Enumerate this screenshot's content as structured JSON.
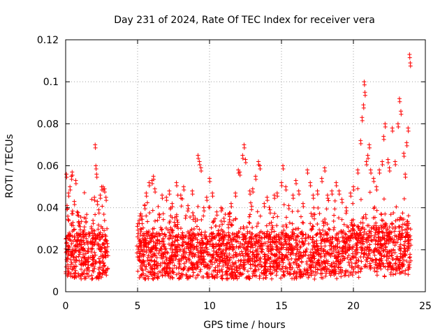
{
  "chart_data": {
    "type": "scatter",
    "title": "Day 231 of 2024, Rate Of TEC Index for receiver vera",
    "xlabel": "GPS time / hours",
    "ylabel": "ROTI / TECUs",
    "xlim": [
      0,
      25
    ],
    "ylim": [
      0,
      0.12
    ],
    "xticks": [
      0,
      5,
      10,
      15,
      20,
      25
    ],
    "xtick_labels": [
      "0",
      "5",
      "10",
      "15",
      "20",
      "25"
    ],
    "yticks": [
      0,
      0.02,
      0.04,
      0.06,
      0.08,
      0.1,
      0.12
    ],
    "ytick_labels": [
      "0",
      "0.02",
      "0.04",
      "0.06",
      "0.08",
      "0.1",
      "0.12"
    ],
    "grid": true,
    "marker": "+",
    "color": "#ff0000",
    "series": [
      {
        "name": "ROTI",
        "coverage_hours": [
          [
            0.0,
            2.95
          ],
          [
            4.95,
            24.0
          ]
        ],
        "points": [
          [
            0.05,
            0.056
          ],
          [
            0.1,
            0.041
          ],
          [
            0.15,
            0.036
          ],
          [
            0.2,
            0.047
          ],
          [
            0.25,
            0.028
          ],
          [
            0.3,
            0.05
          ],
          [
            0.4,
            0.055
          ],
          [
            0.45,
            0.057
          ],
          [
            0.5,
            0.033
          ],
          [
            0.6,
            0.043
          ],
          [
            0.7,
            0.053
          ],
          [
            0.8,
            0.038
          ],
          [
            0.9,
            0.033
          ],
          [
            1.0,
            0.031
          ],
          [
            1.1,
            0.024
          ],
          [
            1.2,
            0.026
          ],
          [
            1.4,
            0.035
          ],
          [
            1.6,
            0.028
          ],
          [
            1.8,
            0.03
          ],
          [
            1.9,
            0.034
          ],
          [
            2.0,
            0.045
          ],
          [
            2.05,
            0.07
          ],
          [
            2.1,
            0.06
          ],
          [
            2.15,
            0.056
          ],
          [
            2.2,
            0.043
          ],
          [
            2.3,
            0.039
          ],
          [
            2.4,
            0.046
          ],
          [
            2.5,
            0.05
          ],
          [
            2.6,
            0.05
          ],
          [
            2.7,
            0.049
          ],
          [
            2.8,
            0.045
          ],
          [
            5.1,
            0.034
          ],
          [
            5.2,
            0.03
          ],
          [
            5.3,
            0.036
          ],
          [
            5.5,
            0.041
          ],
          [
            5.6,
            0.047
          ],
          [
            5.8,
            0.052
          ],
          [
            6.0,
            0.053
          ],
          [
            6.1,
            0.055
          ],
          [
            6.2,
            0.049
          ],
          [
            6.5,
            0.037
          ],
          [
            6.7,
            0.046
          ],
          [
            7.0,
            0.045
          ],
          [
            7.2,
            0.048
          ],
          [
            7.4,
            0.042
          ],
          [
            7.7,
            0.052
          ],
          [
            8.0,
            0.046
          ],
          [
            8.2,
            0.05
          ],
          [
            8.5,
            0.041
          ],
          [
            8.8,
            0.048
          ],
          [
            9.0,
            0.035
          ],
          [
            9.2,
            0.065
          ],
          [
            9.3,
            0.062
          ],
          [
            9.4,
            0.059
          ],
          [
            9.6,
            0.04
          ],
          [
            9.8,
            0.045
          ],
          [
            10.0,
            0.054
          ],
          [
            10.2,
            0.047
          ],
          [
            10.5,
            0.038
          ],
          [
            10.8,
            0.04
          ],
          [
            11.0,
            0.035
          ],
          [
            11.3,
            0.032
          ],
          [
            11.5,
            0.042
          ],
          [
            11.8,
            0.047
          ],
          [
            12.0,
            0.058
          ],
          [
            12.1,
            0.057
          ],
          [
            12.3,
            0.065
          ],
          [
            12.4,
            0.07
          ],
          [
            12.5,
            0.063
          ],
          [
            12.8,
            0.048
          ],
          [
            13.0,
            0.049
          ],
          [
            13.2,
            0.055
          ],
          [
            13.4,
            0.062
          ],
          [
            13.5,
            0.06
          ],
          [
            13.8,
            0.042
          ],
          [
            14.0,
            0.045
          ],
          [
            14.2,
            0.039
          ],
          [
            14.5,
            0.046
          ],
          [
            14.7,
            0.047
          ],
          [
            15.0,
            0.052
          ],
          [
            15.1,
            0.06
          ],
          [
            15.3,
            0.05
          ],
          [
            15.5,
            0.041
          ],
          [
            15.8,
            0.046
          ],
          [
            16.0,
            0.053
          ],
          [
            16.2,
            0.048
          ],
          [
            16.5,
            0.042
          ],
          [
            16.8,
            0.058
          ],
          [
            17.0,
            0.052
          ],
          [
            17.2,
            0.046
          ],
          [
            17.5,
            0.048
          ],
          [
            17.8,
            0.054
          ],
          [
            18.0,
            0.059
          ],
          [
            18.2,
            0.046
          ],
          [
            18.5,
            0.048
          ],
          [
            18.8,
            0.052
          ],
          [
            19.0,
            0.048
          ],
          [
            19.2,
            0.044
          ],
          [
            19.5,
            0.04
          ],
          [
            19.8,
            0.047
          ],
          [
            20.0,
            0.05
          ],
          [
            20.3,
            0.058
          ],
          [
            20.5,
            0.072
          ],
          [
            20.6,
            0.083
          ],
          [
            20.7,
            0.089
          ],
          [
            20.75,
            0.1
          ],
          [
            20.8,
            0.095
          ],
          [
            20.9,
            0.062
          ],
          [
            21.0,
            0.065
          ],
          [
            21.1,
            0.07
          ],
          [
            21.2,
            0.058
          ],
          [
            21.4,
            0.054
          ],
          [
            21.6,
            0.05
          ],
          [
            21.8,
            0.058
          ],
          [
            22.0,
            0.062
          ],
          [
            22.1,
            0.074
          ],
          [
            22.2,
            0.08
          ],
          [
            22.4,
            0.063
          ],
          [
            22.5,
            0.059
          ],
          [
            22.7,
            0.078
          ],
          [
            22.9,
            0.062
          ],
          [
            23.1,
            0.08
          ],
          [
            23.2,
            0.092
          ],
          [
            23.3,
            0.086
          ],
          [
            23.5,
            0.066
          ],
          [
            23.6,
            0.056
          ],
          [
            23.7,
            0.071
          ],
          [
            23.8,
            0.078
          ],
          [
            23.9,
            0.113
          ],
          [
            23.95,
            0.109
          ]
        ]
      }
    ]
  }
}
